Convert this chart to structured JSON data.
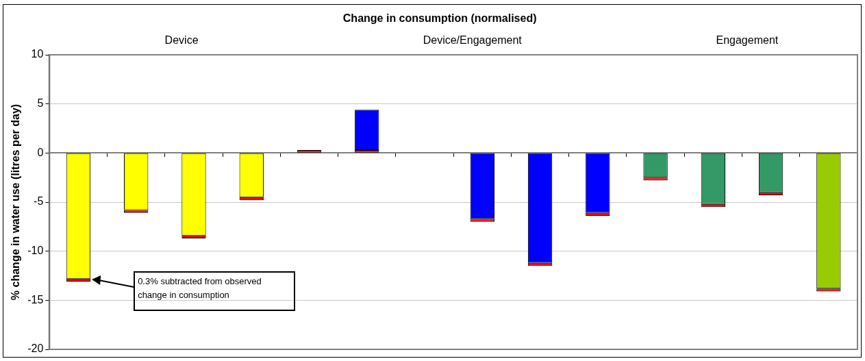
{
  "chart_data": {
    "type": "bar",
    "title": "Change in consumption (normalised)",
    "ylabel": "% change in water use (litres per day)",
    "categories": [
      null,
      null,
      null,
      null,
      null,
      null,
      null,
      null,
      null,
      null,
      null,
      null,
      null,
      null
    ],
    "stacked": true,
    "series": [
      {
        "color": "#ff0000",
        "values": [
          null,
          null,
          null,
          null,
          0.3,
          0.3,
          null,
          null,
          null,
          null,
          null,
          null,
          null,
          null
        ]
      },
      {
        "colors": [
          "#ffff00",
          "#ffff00",
          "#ffff00",
          "#ffff00",
          "#ffff00",
          "#0000ff",
          "#0000ff",
          "#0000ff",
          "#0000ff",
          "#0000ff",
          "#339966",
          "#339966",
          "#339966",
          "#99cc00"
        ],
        "values": [
          -12.8,
          -5.8,
          -8.4,
          -4.5,
          null,
          4.1,
          null,
          -6.7,
          -11.2,
          -6.1,
          -2.5,
          -5.2,
          -4.0,
          -13.8
        ]
      },
      {
        "color": "#ff0000",
        "values": [
          -0.3,
          -0.3,
          -0.3,
          -0.3,
          null,
          null,
          null,
          -0.3,
          -0.3,
          -0.3,
          -0.3,
          -0.3,
          -0.3,
          -0.3
        ]
      }
    ],
    "ylim": [
      -20,
      10
    ],
    "yticks": [
      -20,
      -15,
      -10,
      -5,
      0,
      5,
      10
    ],
    "grid": "y",
    "legend": false,
    "annotations": [
      "Device",
      "Device/Engagement",
      "Engagement",
      "0.3% subtracted from observed change in consumption"
    ]
  }
}
